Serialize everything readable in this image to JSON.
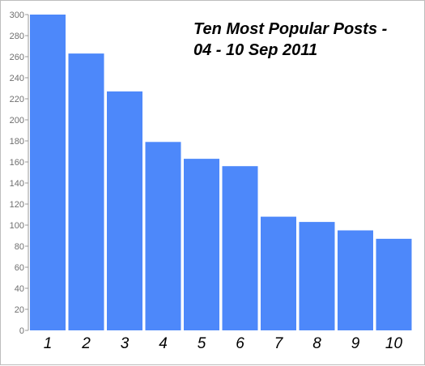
{
  "chart_data": {
    "type": "bar",
    "title_lines": [
      "Ten Most Popular Posts -",
      "04 - 10 Sep 2011"
    ],
    "categories": [
      "1",
      "2",
      "3",
      "4",
      "5",
      "6",
      "7",
      "8",
      "9",
      "10"
    ],
    "values": [
      300,
      263,
      227,
      179,
      163,
      156,
      108,
      103,
      95,
      87
    ],
    "yticks": [
      0,
      20,
      40,
      60,
      80,
      100,
      120,
      140,
      160,
      180,
      200,
      220,
      240,
      260,
      280,
      300
    ],
    "ylim": [
      0,
      300
    ],
    "xlabel": "",
    "ylabel": "",
    "grid": false,
    "legend": "none",
    "bar_color": "#4d88fa"
  }
}
